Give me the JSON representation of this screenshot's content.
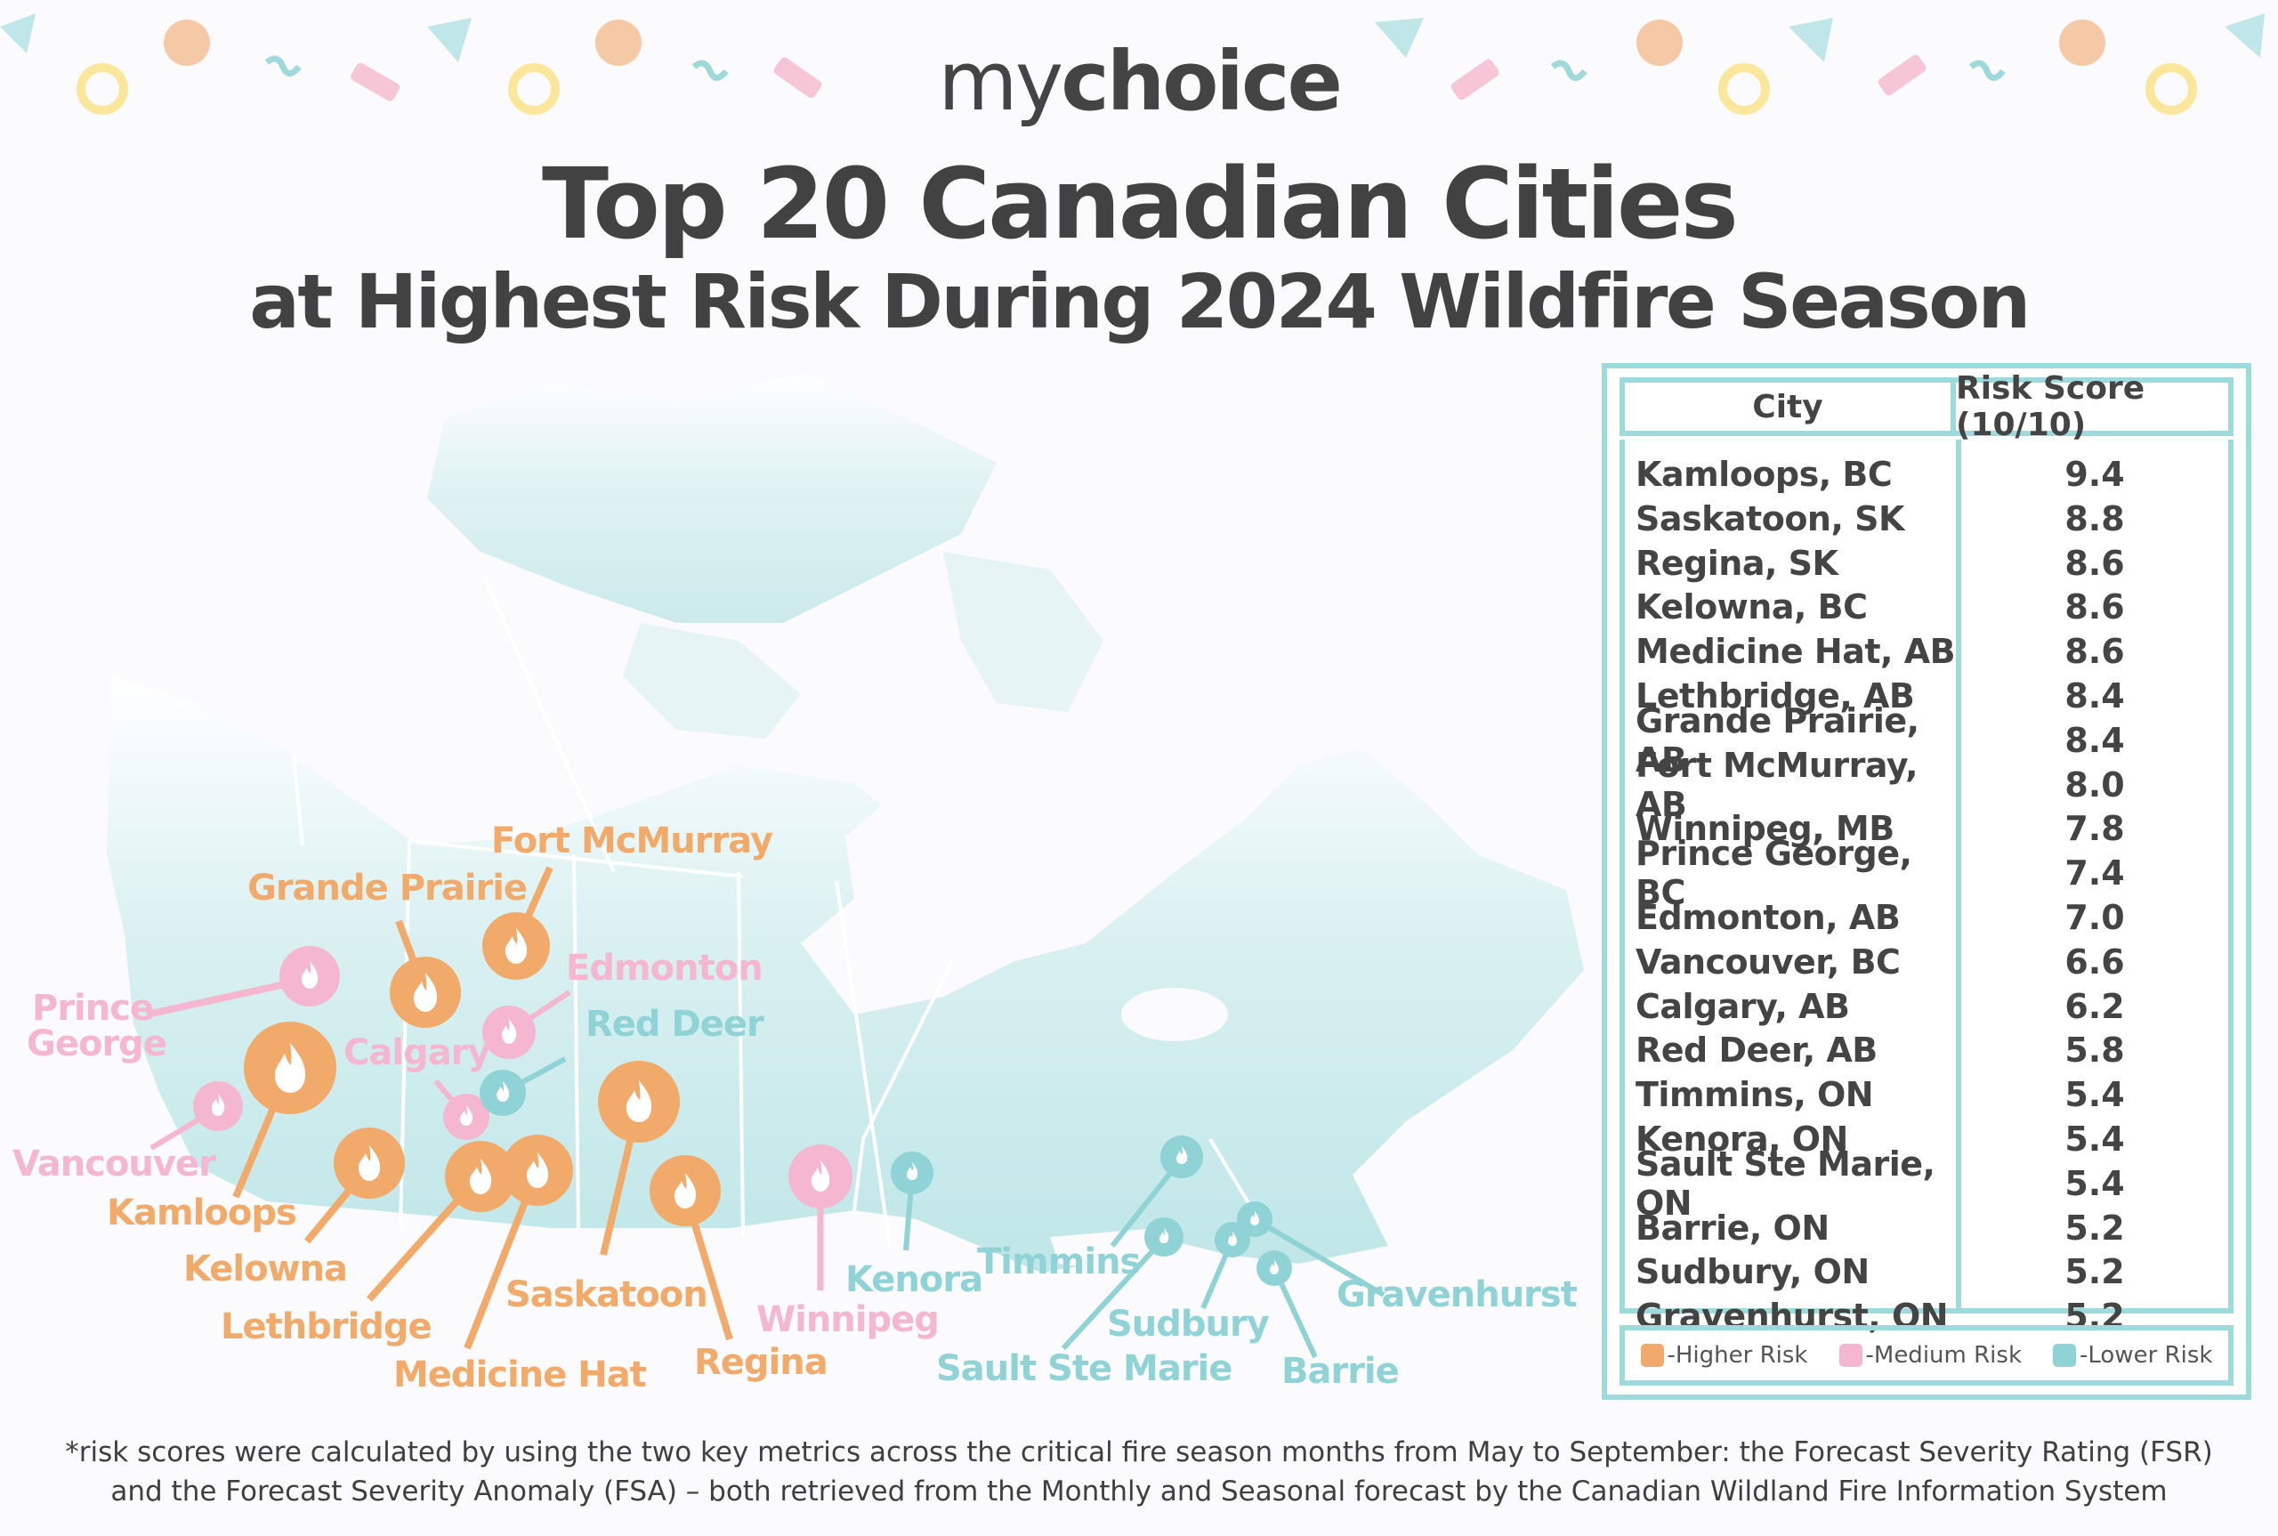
{
  "brand": {
    "my": "my",
    "choice": "choice"
  },
  "title": {
    "line1": "Top 20 Canadian Cities",
    "line2": "at Highest Risk During 2024 Wildfire Season"
  },
  "colors": {
    "higher": "#f2aa6a",
    "medium": "#f5b6cf",
    "lower": "#8fd3d7",
    "map": "#c6e9ea",
    "border": "#9ed9dc"
  },
  "table": {
    "header": {
      "city": "City",
      "score": "Risk Score (10/10)"
    },
    "rows": [
      {
        "city": "Kamloops, BC",
        "score": "9.4"
      },
      {
        "city": "Saskatoon, SK",
        "score": "8.8"
      },
      {
        "city": "Regina, SK",
        "score": "8.6"
      },
      {
        "city": "Kelowna, BC",
        "score": "8.6"
      },
      {
        "city": "Medicine Hat, AB",
        "score": "8.6"
      },
      {
        "city": "Lethbridge, AB",
        "score": "8.4"
      },
      {
        "city": "Grande Prairie, AB",
        "score": "8.4"
      },
      {
        "city": "Fort McMurray, AB",
        "score": "8.0"
      },
      {
        "city": "Winnipeg, MB",
        "score": "7.8"
      },
      {
        "city": "Prince George, BC",
        "score": "7.4"
      },
      {
        "city": "Edmonton, AB",
        "score": "7.0"
      },
      {
        "city": "Vancouver, BC",
        "score": "6.6"
      },
      {
        "city": "Calgary, AB",
        "score": "6.2"
      },
      {
        "city": "Red Deer, AB",
        "score": "5.8"
      },
      {
        "city": "Timmins, ON",
        "score": "5.4"
      },
      {
        "city": "Kenora, ON",
        "score": "5.4"
      },
      {
        "city": "Sault Ste Marie, ON",
        "score": "5.4"
      },
      {
        "city": "Barrie, ON",
        "score": "5.2"
      },
      {
        "city": "Sudbury, ON",
        "score": "5.2"
      },
      {
        "city": "Gravenhurst, ON",
        "score": "5.2"
      }
    ]
  },
  "legend": {
    "higher": "-Higher Risk",
    "medium": "-Medium Risk",
    "lower": "-Lower Risk"
  },
  "map_labels": {
    "fort_mcmurray": "Fort McMurray",
    "grande_prairie": "Grande Prairie",
    "prince": "Prince",
    "george": "George",
    "edmonton": "Edmonton",
    "red_deer": "Red Deer",
    "calgary": "Calgary",
    "vancouver": "Vancouver",
    "kamloops": "Kamloops",
    "kelowna": "Kelowna",
    "lethbridge": "Lethbridge",
    "medicine_hat": "Medicine Hat",
    "saskatoon": "Saskatoon",
    "regina": "Regina",
    "winnipeg": "Winnipeg",
    "kenora": "Kenora",
    "timmins": "Timmins",
    "sault_ste_marie": "Sault Ste Marie",
    "sudbury": "Sudbury",
    "barrie": "Barrie",
    "gravenhurst": "Gravenhurst"
  },
  "footnote": {
    "line1": "*risk scores were calculated by using the two key metrics across the critical fire season months from May to September: the Forecast Severity Rating (FSR)",
    "line2": "and the Forecast Severity Anomaly (FSA) – both retrieved from the Monthly and Seasonal forecast by the Canadian Wildland Fire Information System"
  }
}
